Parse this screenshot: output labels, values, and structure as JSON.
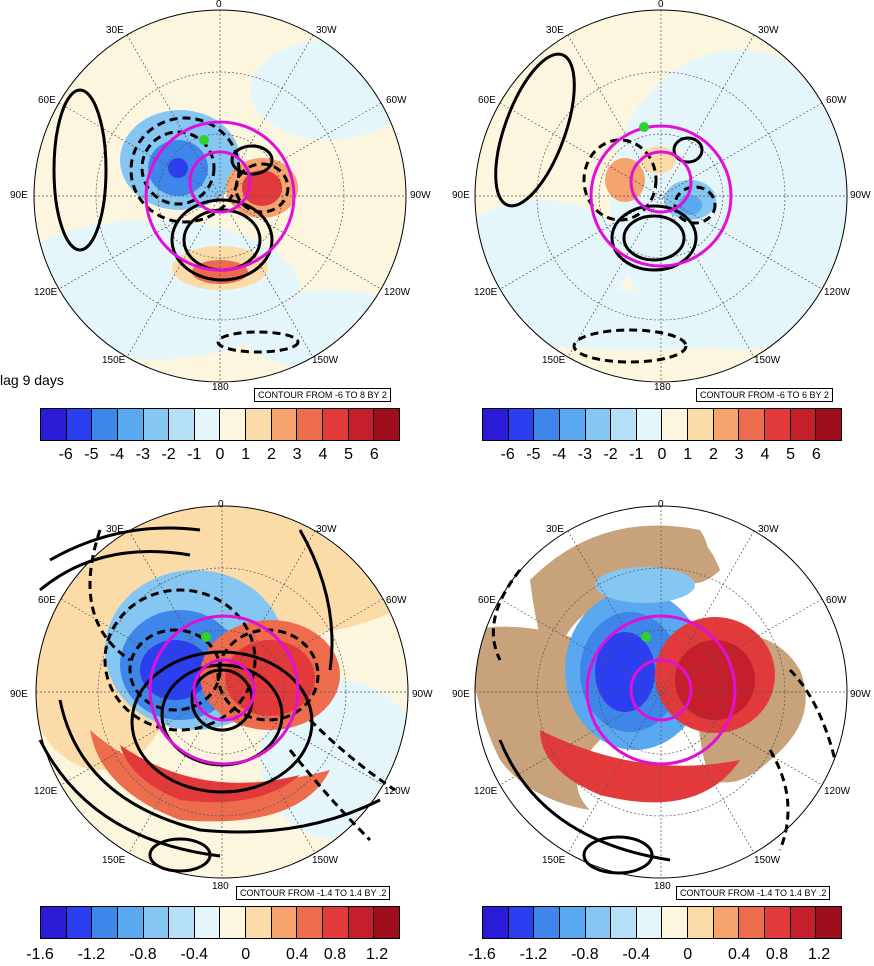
{
  "lag_label": "lag 9 days",
  "panels": [
    {
      "id": "top-left",
      "lon_labels": {
        "top": "0",
        "tl1": "30E",
        "tr1": "30W",
        "l1": "60E",
        "r1": "60W",
        "l2": "90E",
        "r2": "90W",
        "l3": "120E",
        "r3": "120W",
        "bl": "150E",
        "br": "150W",
        "bottom": "180"
      },
      "contour_note": "CONTOUR FROM -6 TO 8 BY 2",
      "colorbar_ticks": [
        "-6",
        "-5",
        "-4",
        "-3",
        "-2",
        "-1",
        "0",
        "1",
        "2",
        "3",
        "4",
        "5",
        "6"
      ]
    },
    {
      "id": "top-right",
      "lon_labels": {
        "top": "0",
        "tl1": "30E",
        "tr1": "30W",
        "l1": "60E",
        "r1": "60W",
        "l2": "90E",
        "r2": "90W",
        "l3": "120E",
        "r3": "120W",
        "bl": "150E",
        "br": "150W",
        "bottom": "180"
      },
      "contour_note": "CONTOUR FROM -6 TO 6 BY 2",
      "colorbar_ticks": [
        "-6",
        "-5",
        "-4",
        "-3",
        "-2",
        "-1",
        "0",
        "1",
        "2",
        "3",
        "4",
        "5",
        "6"
      ]
    },
    {
      "id": "bottom-left",
      "lon_labels": {
        "top": "0",
        "tl1": "30E",
        "tr1": "30W",
        "l1": "60E",
        "r1": "60W",
        "l2": "90E",
        "r2": "90W",
        "l3": "120E",
        "r3": "120W",
        "bl": "150E",
        "br": "150W",
        "bottom": "180"
      },
      "contour_note": "CONTOUR FROM -1.4 TO 1.4 BY .2",
      "colorbar_ticks": [
        "-1.6",
        "-1.2",
        "-0.8",
        "-0.4",
        "0",
        "0.4",
        "0.8",
        "1.2"
      ]
    },
    {
      "id": "bottom-right",
      "lon_labels": {
        "top": "0",
        "tl1": "30E",
        "tr1": "30W",
        "l1": "60E",
        "r1": "60W",
        "l2": "90E",
        "r2": "90W",
        "l3": "120E",
        "r3": "120W",
        "bl": "150E",
        "br": "150W",
        "bottom": "180"
      },
      "contour_note": "CONTOUR FROM -1.4 TO 1.4 BY .2",
      "colorbar_ticks": [
        "-1.6",
        "-1.2",
        "-0.8",
        "-0.4",
        "0",
        "0.4",
        "0.8",
        "1.2"
      ]
    }
  ],
  "colors": {
    "colorbar": [
      "#2a1bd6",
      "#2b3ff0",
      "#3f86ea",
      "#5aa9f0",
      "#86c6f2",
      "#b6e0f7",
      "#e5f6fb",
      "#fdf6df",
      "#fbdca9",
      "#f6a36e",
      "#ec6c4d",
      "#e23a3a",
      "#c41f2b",
      "#9e0f1e"
    ],
    "guide_circle": "#e010d8",
    "land": "#c8a27a",
    "marker": "#2fd12f"
  }
}
